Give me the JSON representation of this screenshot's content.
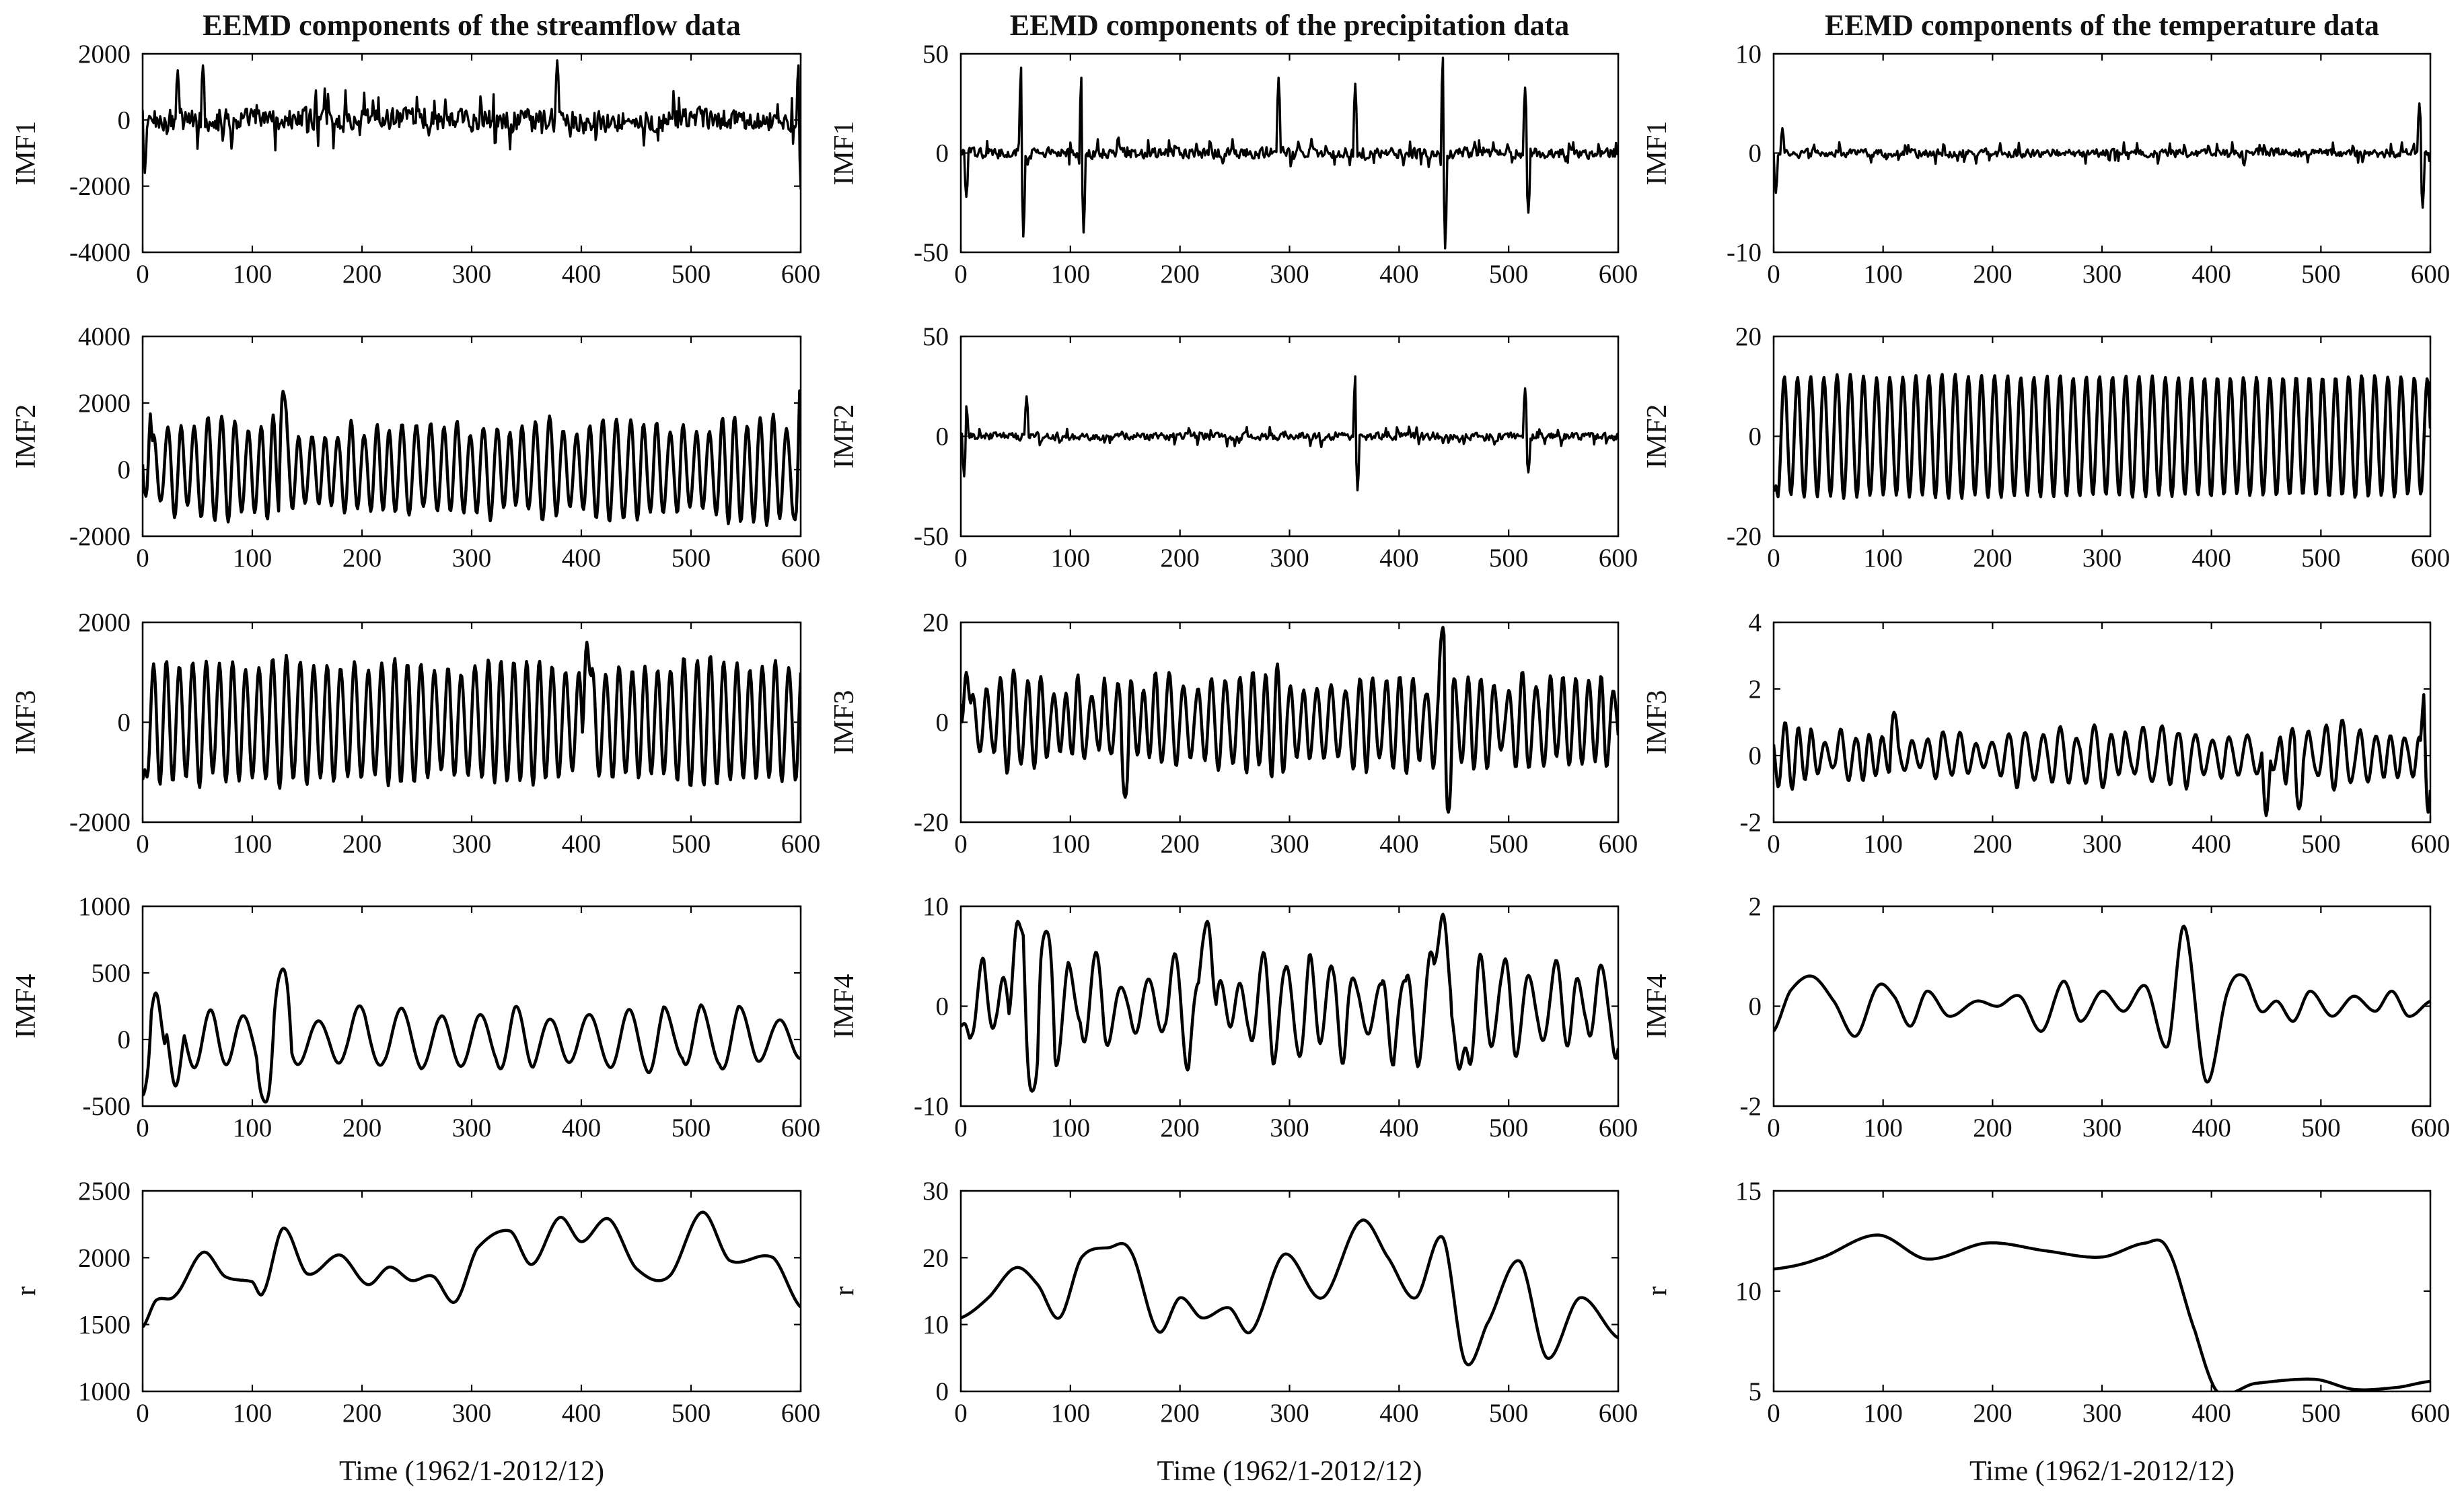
{
  "chart_data": [
    {
      "title": "EEMD components of the  streamflow data",
      "xlabel": "Time (1962/1-2012/12)",
      "xlim": [
        0,
        600
      ],
      "xticks": [
        "0",
        "100",
        "200",
        "300",
        "400",
        "500",
        "600"
      ],
      "panels": [
        {
          "type": "line",
          "ylabel": "IMF1",
          "ylim": [
            -4000,
            2000
          ],
          "yticks": [
            "2000",
            "0",
            "-2000",
            "-4000"
          ],
          "style": "noise",
          "amp": 900,
          "spikes": [
            {
              "x": 32,
              "y": 1500
            },
            {
              "x": 55,
              "y": 1650
            },
            {
              "x": 378,
              "y": 1800
            },
            {
              "x": 598,
              "y": 1650
            },
            {
              "x": 2,
              "y": -1600
            },
            {
              "x": 600,
              "y": -2100
            }
          ]
        },
        {
          "type": "line",
          "ylabel": "IMF2",
          "ylim": [
            -2000,
            4000
          ],
          "yticks": [
            "4000",
            "2000",
            "0",
            "-2000"
          ],
          "style": "osc",
          "period": 12,
          "amp": 1300,
          "offset": 300,
          "jitter": 0.35,
          "spikes": [
            {
              "x": 5,
              "y": 2400
            },
            {
              "x": 128,
              "y": 2350
            },
            {
              "x": 598,
              "y": 2450
            },
            {
              "x": 3,
              "y": -800
            },
            {
              "x": 595,
              "y": -1500
            }
          ]
        },
        {
          "type": "line",
          "ylabel": "IMF3",
          "ylim": [
            -2000,
            2000
          ],
          "yticks": [
            "2000",
            "0",
            "-2000"
          ],
          "style": "osc",
          "period": 12,
          "amp": 1150,
          "offset": 0,
          "jitter": 0.25,
          "spikes": [
            {
              "x": 405,
              "y": 1600
            },
            {
              "x": 0,
              "y": -1150
            }
          ]
        },
        {
          "type": "line",
          "ylabel": "IMF4",
          "ylim": [
            -500,
            1000
          ],
          "yticks": [
            "1000",
            "500",
            "0",
            "-500"
          ],
          "style": "smooth",
          "period": 34,
          "amp": 220,
          "offset": 0,
          "jitter": 0.4,
          "spikes": [
            {
              "x": 12,
              "y": 350
            },
            {
              "x": 30,
              "y": -350
            },
            {
              "x": 112,
              "y": -470
            },
            {
              "x": 128,
              "y": 530
            },
            {
              "x": 0,
              "y": -420
            }
          ]
        },
        {
          "type": "line",
          "ylabel": "r",
          "ylim": [
            1000,
            2500
          ],
          "yticks": [
            "2500",
            "2000",
            "1500",
            "1000"
          ],
          "style": "points",
          "points": [
            [
              0,
              1480
            ],
            [
              12,
              1680
            ],
            [
              30,
              1720
            ],
            [
              55,
              2040
            ],
            [
              75,
              1860
            ],
            [
              100,
              1820
            ],
            [
              110,
              1740
            ],
            [
              128,
              2220
            ],
            [
              150,
              1880
            ],
            [
              180,
              2020
            ],
            [
              205,
              1800
            ],
            [
              225,
              1930
            ],
            [
              245,
              1830
            ],
            [
              265,
              1860
            ],
            [
              285,
              1670
            ],
            [
              305,
              2070
            ],
            [
              335,
              2200
            ],
            [
              355,
              1950
            ],
            [
              380,
              2300
            ],
            [
              400,
              2120
            ],
            [
              425,
              2290
            ],
            [
              450,
              1920
            ],
            [
              480,
              1860
            ],
            [
              510,
              2340
            ],
            [
              535,
              1980
            ],
            [
              575,
              2000
            ],
            [
              600,
              1630
            ]
          ]
        }
      ]
    },
    {
      "title": "EEMD components of the  precipitation data",
      "xlabel": "Time (1962/1-2012/12)",
      "xlim": [
        0,
        600
      ],
      "xticks": [
        "0",
        "100",
        "200",
        "300",
        "400",
        "500",
        "600"
      ],
      "panels": [
        {
          "type": "line",
          "ylabel": "IMF1",
          "ylim": [
            -50,
            50
          ],
          "yticks": [
            "50",
            "0",
            "-50"
          ],
          "style": "noise",
          "amp": 7,
          "spikes": [
            {
              "x": 55,
              "y": 43
            },
            {
              "x": 57,
              "y": -42
            },
            {
              "x": 110,
              "y": 38
            },
            {
              "x": 112,
              "y": -40
            },
            {
              "x": 290,
              "y": 38
            },
            {
              "x": 360,
              "y": 35
            },
            {
              "x": 440,
              "y": 48
            },
            {
              "x": 442,
              "y": -48
            },
            {
              "x": 515,
              "y": 33
            },
            {
              "x": 518,
              "y": -30
            },
            {
              "x": 5,
              "y": -22
            }
          ]
        },
        {
          "type": "line",
          "ylabel": "IMF2",
          "ylim": [
            -50,
            50
          ],
          "yticks": [
            "50",
            "0",
            "-50"
          ],
          "style": "noise",
          "amp": 5,
          "spikes": [
            {
              "x": 5,
              "y": 15
            },
            {
              "x": 3,
              "y": -20
            },
            {
              "x": 60,
              "y": 20
            },
            {
              "x": 360,
              "y": 30
            },
            {
              "x": 362,
              "y": -27
            },
            {
              "x": 515,
              "y": 24
            },
            {
              "x": 518,
              "y": -18
            }
          ]
        },
        {
          "type": "line",
          "ylabel": "IMF3",
          "ylim": [
            -20,
            20
          ],
          "yticks": [
            "20",
            "0",
            "-20"
          ],
          "style": "osc",
          "period": 12,
          "amp": 8,
          "offset": 0,
          "jitter": 0.6,
          "spikes": [
            {
              "x": 440,
              "y": 19
            },
            {
              "x": 445,
              "y": -18
            },
            {
              "x": 150,
              "y": -15
            },
            {
              "x": 5,
              "y": 10
            }
          ]
        },
        {
          "type": "line",
          "ylabel": "IMF4",
          "ylim": [
            -10,
            10
          ],
          "yticks": [
            "10",
            "0",
            "-10"
          ],
          "style": "smooth",
          "period": 22,
          "amp": 4,
          "offset": 0,
          "jitter": 0.7,
          "spikes": [
            {
              "x": 52,
              "y": 8.5
            },
            {
              "x": 65,
              "y": -8.5
            },
            {
              "x": 78,
              "y": 7.5
            },
            {
              "x": 225,
              "y": 8.5
            },
            {
              "x": 440,
              "y": 9.2
            },
            {
              "x": 455,
              "y": -6.3
            },
            {
              "x": 0,
              "y": -2
            }
          ]
        },
        {
          "type": "line",
          "ylabel": "r",
          "ylim": [
            0,
            30
          ],
          "yticks": [
            "30",
            "20",
            "10",
            "0"
          ],
          "style": "points",
          "points": [
            [
              0,
              11
            ],
            [
              25,
              14
            ],
            [
              50,
              18.5
            ],
            [
              70,
              16
            ],
            [
              90,
              11
            ],
            [
              110,
              20
            ],
            [
              135,
              21.5
            ],
            [
              155,
              21
            ],
            [
              180,
              9
            ],
            [
              200,
              14
            ],
            [
              220,
              11
            ],
            [
              245,
              12.5
            ],
            [
              265,
              9
            ],
            [
              295,
              20.5
            ],
            [
              330,
              14
            ],
            [
              365,
              25.5
            ],
            [
              390,
              20
            ],
            [
              415,
              14
            ],
            [
              440,
              23
            ],
            [
              460,
              4.5
            ],
            [
              480,
              10
            ],
            [
              510,
              19.5
            ],
            [
              535,
              5
            ],
            [
              565,
              14
            ],
            [
              600,
              8
            ]
          ]
        }
      ]
    },
    {
      "title": "EEMD components of the  temperature data",
      "xlabel": "Time (1962/1-2012/12)",
      "xlim": [
        0,
        600
      ],
      "xticks": [
        "0",
        "100",
        "200",
        "300",
        "400",
        "500",
        "600"
      ],
      "panels": [
        {
          "type": "line",
          "ylabel": "IMF1",
          "ylim": [
            -10,
            10
          ],
          "yticks": [
            "10",
            "0",
            "-10"
          ],
          "style": "noise",
          "amp": 1.1,
          "spikes": [
            {
              "x": 2,
              "y": -4
            },
            {
              "x": 8,
              "y": 2.5
            },
            {
              "x": 590,
              "y": 5
            },
            {
              "x": 593,
              "y": -5.5
            }
          ]
        },
        {
          "type": "line",
          "ylabel": "IMF2",
          "ylim": [
            -20,
            20
          ],
          "yticks": [
            "20",
            "0",
            "-20"
          ],
          "style": "osc",
          "period": 12,
          "amp": 12,
          "offset": 0,
          "jitter": 0.05,
          "spikes": [
            {
              "x": 0,
              "y": -11
            }
          ]
        },
        {
          "type": "line",
          "ylabel": "IMF3",
          "ylim": [
            -2,
            4
          ],
          "yticks": [
            "4",
            "2",
            "0",
            "-2"
          ],
          "style": "osc",
          "period": 14,
          "amp": 0.7,
          "offset": 0,
          "jitter": 0.7,
          "spikes": [
            {
              "x": 110,
              "y": 1.3
            },
            {
              "x": 595,
              "y": 2
            },
            {
              "x": 598,
              "y": -1.7
            },
            {
              "x": 450,
              "y": -1.8
            },
            {
              "x": 480,
              "y": -1.6
            }
          ]
        },
        {
          "type": "line",
          "ylabel": "IMF4",
          "ylim": [
            -2,
            2
          ],
          "yticks": [
            "2",
            "0",
            "-2"
          ],
          "style": "points",
          "points": [
            [
              0,
              -0.5
            ],
            [
              15,
              0.3
            ],
            [
              35,
              0.6
            ],
            [
              55,
              0.1
            ],
            [
              75,
              -0.6
            ],
            [
              95,
              0.4
            ],
            [
              110,
              0.2
            ],
            [
              125,
              -0.4
            ],
            [
              140,
              0.3
            ],
            [
              160,
              -0.2
            ],
            [
              185,
              0.1
            ],
            [
              205,
              0.0
            ],
            [
              225,
              0.2
            ],
            [
              245,
              -0.5
            ],
            [
              265,
              0.5
            ],
            [
              280,
              -0.3
            ],
            [
              300,
              0.3
            ],
            [
              320,
              -0.1
            ],
            [
              340,
              0.4
            ],
            [
              360,
              -0.8
            ],
            [
              375,
              1.6
            ],
            [
              395,
              -1.5
            ],
            [
              415,
              0.3
            ],
            [
              430,
              0.6
            ],
            [
              445,
              -0.1
            ],
            [
              460,
              0.1
            ],
            [
              475,
              -0.3
            ],
            [
              490,
              0.3
            ],
            [
              510,
              -0.2
            ],
            [
              530,
              0.2
            ],
            [
              550,
              -0.1
            ],
            [
              565,
              0.3
            ],
            [
              580,
              -0.2
            ],
            [
              600,
              0.1
            ]
          ]
        },
        {
          "type": "line",
          "ylabel": "r",
          "ylim": [
            5,
            15
          ],
          "yticks": [
            "15",
            "10",
            "5"
          ],
          "style": "points",
          "points": [
            [
              0,
              11.1
            ],
            [
              40,
              11.6
            ],
            [
              95,
              12.8
            ],
            [
              140,
              11.6
            ],
            [
              195,
              12.4
            ],
            [
              250,
              12.0
            ],
            [
              300,
              11.7
            ],
            [
              340,
              12.4
            ],
            [
              360,
              12.1
            ],
            [
              385,
              8.0
            ],
            [
              405,
              5.0
            ],
            [
              440,
              5.4
            ],
            [
              495,
              5.6
            ],
            [
              530,
              5.1
            ],
            [
              570,
              5.2
            ],
            [
              600,
              5.5
            ]
          ]
        }
      ]
    }
  ]
}
